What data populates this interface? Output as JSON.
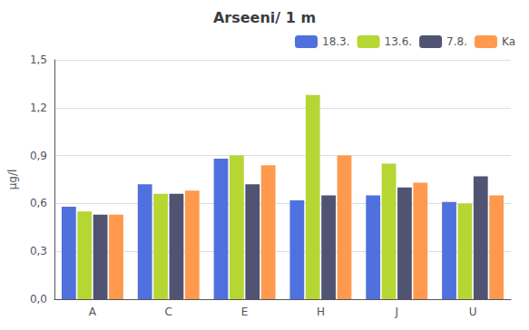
{
  "chart_data": {
    "type": "bar",
    "title": "Arseeni/ 1 m",
    "ylabel": "μg/l",
    "categories": [
      "A",
      "C",
      "E",
      "H",
      "J",
      "U"
    ],
    "series": [
      {
        "name": "18.3.",
        "values": [
          0.58,
          0.72,
          0.88,
          0.62,
          0.65,
          0.61
        ]
      },
      {
        "name": "13.6.",
        "values": [
          0.55,
          0.66,
          0.9,
          1.28,
          0.85,
          0.6
        ]
      },
      {
        "name": "7.8.",
        "values": [
          0.53,
          0.66,
          0.72,
          0.65,
          0.7,
          0.77
        ]
      },
      {
        "name": "Ka",
        "values": [
          0.53,
          0.68,
          0.84,
          0.9,
          0.73,
          0.65
        ]
      }
    ],
    "ylim": [
      0,
      1.5
    ],
    "yticks": [
      {
        "value": 0.0,
        "label": "0,0"
      },
      {
        "value": 0.3,
        "label": "0,3"
      },
      {
        "value": 0.6,
        "label": "0,6"
      },
      {
        "value": 0.9,
        "label": "0,9"
      },
      {
        "value": 1.2,
        "label": "1,2"
      },
      {
        "value": 1.5,
        "label": "1,5"
      }
    ],
    "grid": true,
    "legend": "upper right"
  }
}
